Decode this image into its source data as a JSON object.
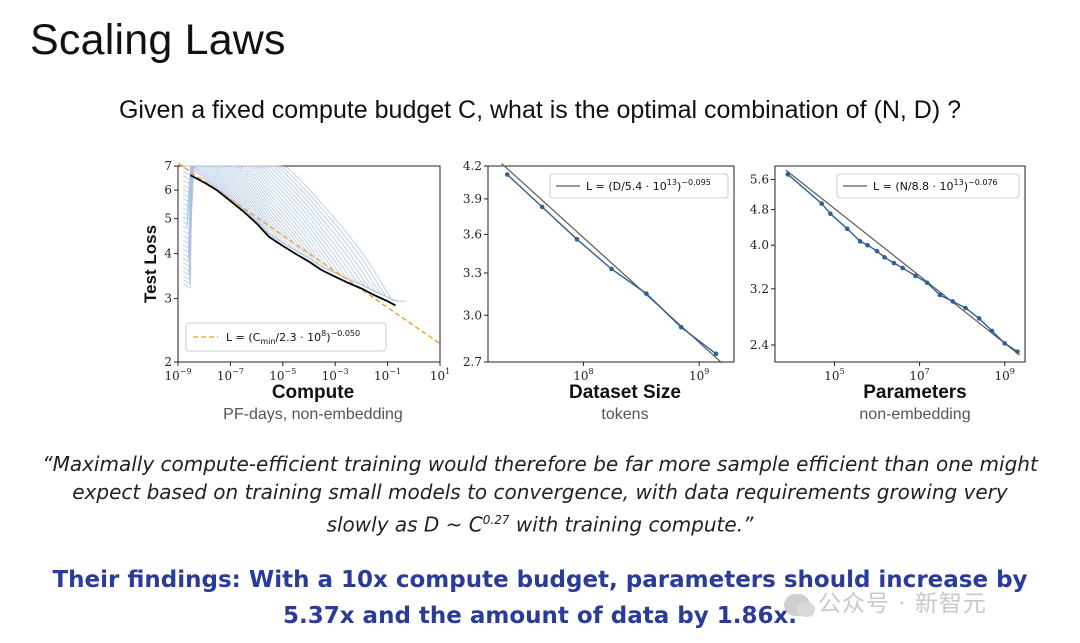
{
  "slide": {
    "title": "Scaling Laws",
    "subtitle": "Given a fixed compute budget C, what is the optimal combination of (N, D) ?",
    "quote_parts": {
      "text": "“Maximally compute-efficient training would therefore be far more sample efficient than one might expect based on training small models to convergence, with data requirements growing very slowly as D ~ C",
      "exponent": "0.27",
      "end": " with training compute.”"
    },
    "findings": "Their findings: With a 10x compute budget, parameters should increase by 5.37x and the amount of data by 1.86x.",
    "watermark": "公众号 · 新智元"
  },
  "colors": {
    "findings": "#2a3b9a",
    "curve_bg": "#a9c3df",
    "frontier": "#000000",
    "fit_dashed": "#f0a94a",
    "point": "#2f5f94",
    "fit_line": "#5a5a5a"
  },
  "chart_data": [
    {
      "type": "line",
      "name": "compute",
      "xscale": "log",
      "yscale": "log",
      "xlabel": "Compute",
      "xsublabel": "PF-days, non-embedding",
      "ylabel": "Test Loss",
      "xlim": [
        1e-09,
        10
      ],
      "ylim": [
        2,
        7
      ],
      "xticks": [
        "10^-9",
        "10^-7",
        "10^-5",
        "10^-3",
        "10^-1",
        "10^1"
      ],
      "yticks": [
        2,
        3,
        4,
        5,
        6,
        7
      ],
      "frontier": {
        "x": [
          3e-09,
          1e-08,
          3e-08,
          1e-07,
          3e-07,
          1e-06,
          3e-06,
          1e-05,
          3e-05,
          0.0001,
          0.0003,
          0.001,
          0.003,
          0.01,
          0.03,
          0.1,
          0.2
        ],
        "y": [
          6.6,
          6.3,
          6.0,
          5.6,
          5.25,
          4.85,
          4.45,
          4.2,
          4.0,
          3.8,
          3.6,
          3.45,
          3.32,
          3.2,
          3.07,
          2.95,
          2.87
        ]
      },
      "fit": {
        "label": "L = (Cmin/2.3 · 10^8)^-0.050",
        "prefix": "L = (C",
        "sub": "min",
        "mid": "/2.3 · 10",
        "sup1": "8",
        "sup2": "−0.050",
        "x": [
          1e-09,
          10
        ],
        "y": [
          7.13,
          2.25
        ]
      },
      "legend": "bottom-left"
    },
    {
      "type": "line",
      "name": "dataset",
      "xscale": "log",
      "yscale": "log",
      "xlabel": "Dataset Size",
      "xsublabel": "tokens",
      "xlim": [
        15000000.0,
        2000000000.0
      ],
      "ylim": [
        2.7,
        4.2
      ],
      "xticks": [
        "10^8",
        "10^9"
      ],
      "yticks": [
        2.7,
        3.0,
        3.3,
        3.6,
        3.9,
        4.2
      ],
      "points": {
        "x": [
          22000000.0,
          44000000.0,
          88000000.0,
          175000000.0,
          350000000.0,
          700000000.0,
          1400000000.0
        ],
        "y": [
          4.12,
          3.83,
          3.56,
          3.33,
          3.15,
          2.92,
          2.75
        ]
      },
      "fit": {
        "label": "L = (D/5.4 · 10^13)^-0.095",
        "prefix": "L = (D/5.4 · 10",
        "sup1": "13",
        "sup2": "−0.095"
      },
      "legend": "top-right"
    },
    {
      "type": "line",
      "name": "parameters",
      "xscale": "log",
      "yscale": "log",
      "xlabel": "Parameters",
      "xsublabel": "non-embedding",
      "xlim": [
        4000.0,
        3000000000.0
      ],
      "ylim": [
        2.2,
        6.0
      ],
      "xticks": [
        "10^5",
        "10^7",
        "10^9"
      ],
      "yticks": [
        2.4,
        3.2,
        4.0,
        4.8,
        5.6
      ],
      "points": {
        "x": [
          8000.0,
          50000.0,
          80000.0,
          200000.0,
          400000.0,
          600000.0,
          1000000.0,
          1500000.0,
          2500000.0,
          4000000.0,
          8000000.0,
          15000000.0,
          30000000.0,
          60000000.0,
          120000000.0,
          250000000.0,
          500000000.0,
          1000000000.0,
          2000000000.0
        ],
        "y": [
          5.75,
          4.95,
          4.7,
          4.35,
          4.08,
          4.0,
          3.88,
          3.76,
          3.65,
          3.56,
          3.42,
          3.3,
          3.1,
          3.0,
          2.9,
          2.75,
          2.58,
          2.42,
          2.32
        ]
      },
      "fit": {
        "label": "L = (N/8.8 · 10^13)^-0.076",
        "prefix": "L = (N/8.8 · 10",
        "sup1": "13",
        "sup2": "−0.076"
      },
      "legend": "top-right"
    }
  ]
}
